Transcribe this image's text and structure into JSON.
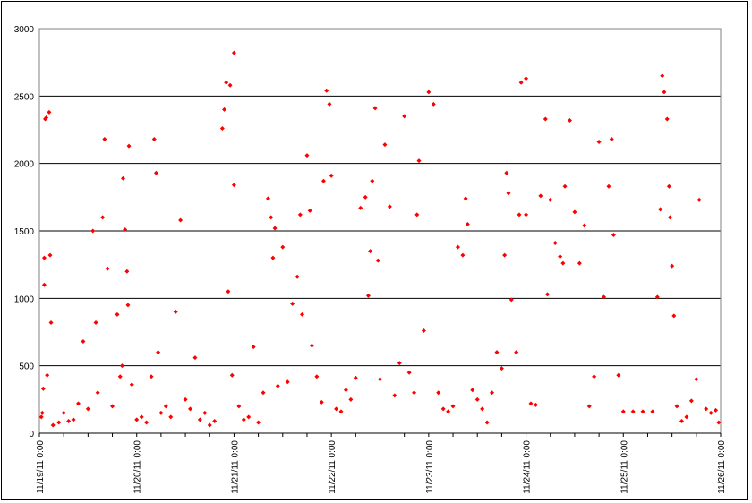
{
  "chart_data": {
    "type": "scatter",
    "title": "",
    "xlabel": "",
    "ylabel": "",
    "ylim": [
      0,
      3000
    ],
    "y_ticks": [
      "0",
      "500",
      "1000",
      "1500",
      "2000",
      "2500",
      "3000"
    ],
    "x_ticks": [
      "11/19/11 0:00",
      "11/20/11 0:00",
      "11/21/11 0:00",
      "11/22/11 0:00",
      "11/23/11 0:00",
      "11/24/11 0:00",
      "11/25/11 0:00",
      "11/26/11 0:00"
    ],
    "xlim_days": [
      0,
      7
    ],
    "grid": "horizontal",
    "legend": "none",
    "marker": "diamond",
    "series_color": "#ff0000",
    "series": [
      {
        "points": [
          [
            0.02,
            120
          ],
          [
            0.03,
            150
          ],
          [
            0.04,
            330
          ],
          [
            0.05,
            1100
          ],
          [
            0.05,
            1300
          ],
          [
            0.06,
            2330
          ],
          [
            0.07,
            2340
          ],
          [
            0.08,
            430
          ],
          [
            0.1,
            2380
          ],
          [
            0.11,
            1320
          ],
          [
            0.12,
            820
          ],
          [
            0.14,
            60
          ],
          [
            0.2,
            80
          ],
          [
            0.25,
            150
          ],
          [
            0.3,
            90
          ],
          [
            0.35,
            100
          ],
          [
            0.4,
            220
          ],
          [
            0.45,
            680
          ],
          [
            0.5,
            180
          ],
          [
            0.55,
            1500
          ],
          [
            0.58,
            820
          ],
          [
            0.6,
            300
          ],
          [
            0.65,
            1600
          ],
          [
            0.67,
            2180
          ],
          [
            0.7,
            1220
          ],
          [
            0.75,
            200
          ],
          [
            0.8,
            880
          ],
          [
            0.83,
            420
          ],
          [
            0.85,
            500
          ],
          [
            0.86,
            1890
          ],
          [
            0.88,
            1510
          ],
          [
            0.9,
            1200
          ],
          [
            0.91,
            950
          ],
          [
            0.92,
            2130
          ],
          [
            0.95,
            360
          ],
          [
            1.0,
            100
          ],
          [
            1.05,
            120
          ],
          [
            1.1,
            80
          ],
          [
            1.15,
            420
          ],
          [
            1.18,
            2180
          ],
          [
            1.2,
            1930
          ],
          [
            1.22,
            600
          ],
          [
            1.25,
            150
          ],
          [
            1.3,
            200
          ],
          [
            1.35,
            120
          ],
          [
            1.4,
            900
          ],
          [
            1.45,
            1580
          ],
          [
            1.5,
            250
          ],
          [
            1.55,
            180
          ],
          [
            1.6,
            560
          ],
          [
            1.65,
            100
          ],
          [
            1.7,
            150
          ],
          [
            1.75,
            60
          ],
          [
            1.8,
            90
          ],
          [
            1.88,
            2260
          ],
          [
            1.9,
            2400
          ],
          [
            1.92,
            2600
          ],
          [
            1.94,
            1050
          ],
          [
            1.96,
            2580
          ],
          [
            1.98,
            430
          ],
          [
            2.0,
            2820
          ],
          [
            2.0,
            1840
          ],
          [
            2.05,
            200
          ],
          [
            2.1,
            100
          ],
          [
            2.15,
            120
          ],
          [
            2.2,
            640
          ],
          [
            2.25,
            80
          ],
          [
            2.3,
            300
          ],
          [
            2.35,
            1740
          ],
          [
            2.38,
            1600
          ],
          [
            2.4,
            1300
          ],
          [
            2.42,
            1520
          ],
          [
            2.45,
            350
          ],
          [
            2.5,
            1380
          ],
          [
            2.55,
            380
          ],
          [
            2.6,
            960
          ],
          [
            2.65,
            1160
          ],
          [
            2.68,
            1620
          ],
          [
            2.7,
            880
          ],
          [
            2.75,
            2060
          ],
          [
            2.78,
            1650
          ],
          [
            2.8,
            650
          ],
          [
            2.85,
            420
          ],
          [
            2.9,
            230
          ],
          [
            2.92,
            1870
          ],
          [
            2.95,
            2540
          ],
          [
            2.98,
            2440
          ],
          [
            3.0,
            1910
          ],
          [
            3.05,
            180
          ],
          [
            3.1,
            160
          ],
          [
            3.15,
            320
          ],
          [
            3.2,
            250
          ],
          [
            3.25,
            410
          ],
          [
            3.3,
            1670
          ],
          [
            3.35,
            1750
          ],
          [
            3.38,
            1020
          ],
          [
            3.4,
            1350
          ],
          [
            3.42,
            1870
          ],
          [
            3.45,
            2410
          ],
          [
            3.48,
            1280
          ],
          [
            3.5,
            400
          ],
          [
            3.55,
            2140
          ],
          [
            3.6,
            1680
          ],
          [
            3.65,
            280
          ],
          [
            3.7,
            520
          ],
          [
            3.75,
            2350
          ],
          [
            3.8,
            450
          ],
          [
            3.85,
            300
          ],
          [
            3.88,
            1620
          ],
          [
            3.9,
            2020
          ],
          [
            3.95,
            760
          ],
          [
            4.0,
            2530
          ],
          [
            4.05,
            2440
          ],
          [
            4.1,
            300
          ],
          [
            4.15,
            180
          ],
          [
            4.2,
            160
          ],
          [
            4.25,
            200
          ],
          [
            4.3,
            1380
          ],
          [
            4.35,
            1320
          ],
          [
            4.38,
            1740
          ],
          [
            4.4,
            1550
          ],
          [
            4.45,
            320
          ],
          [
            4.5,
            250
          ],
          [
            4.55,
            180
          ],
          [
            4.6,
            80
          ],
          [
            4.65,
            300
          ],
          [
            4.7,
            600
          ],
          [
            4.75,
            480
          ],
          [
            4.78,
            1320
          ],
          [
            4.8,
            1930
          ],
          [
            4.82,
            1780
          ],
          [
            4.85,
            990
          ],
          [
            4.9,
            600
          ],
          [
            4.93,
            1620
          ],
          [
            4.95,
            2600
          ],
          [
            5.0,
            2630
          ],
          [
            5.0,
            1620
          ],
          [
            5.05,
            220
          ],
          [
            5.1,
            210
          ],
          [
            5.15,
            1760
          ],
          [
            5.2,
            2330
          ],
          [
            5.22,
            1030
          ],
          [
            5.25,
            1730
          ],
          [
            5.3,
            1410
          ],
          [
            5.35,
            1310
          ],
          [
            5.38,
            1260
          ],
          [
            5.4,
            1830
          ],
          [
            5.45,
            2320
          ],
          [
            5.5,
            1640
          ],
          [
            5.55,
            1260
          ],
          [
            5.6,
            1540
          ],
          [
            5.65,
            200
          ],
          [
            5.7,
            420
          ],
          [
            5.75,
            2160
          ],
          [
            5.8,
            1010
          ],
          [
            5.85,
            1830
          ],
          [
            5.88,
            2180
          ],
          [
            5.9,
            1470
          ],
          [
            5.95,
            430
          ],
          [
            6.0,
            160
          ],
          [
            6.1,
            160
          ],
          [
            6.2,
            160
          ],
          [
            6.3,
            160
          ],
          [
            6.35,
            1010
          ],
          [
            6.38,
            1660
          ],
          [
            6.4,
            2650
          ],
          [
            6.42,
            2530
          ],
          [
            6.45,
            2330
          ],
          [
            6.47,
            1830
          ],
          [
            6.48,
            1600
          ],
          [
            6.5,
            1240
          ],
          [
            6.52,
            870
          ],
          [
            6.55,
            200
          ],
          [
            6.6,
            90
          ],
          [
            6.65,
            120
          ],
          [
            6.7,
            240
          ],
          [
            6.75,
            400
          ],
          [
            6.78,
            1730
          ],
          [
            6.85,
            180
          ],
          [
            6.9,
            150
          ],
          [
            6.95,
            170
          ],
          [
            6.98,
            80
          ]
        ]
      }
    ]
  }
}
